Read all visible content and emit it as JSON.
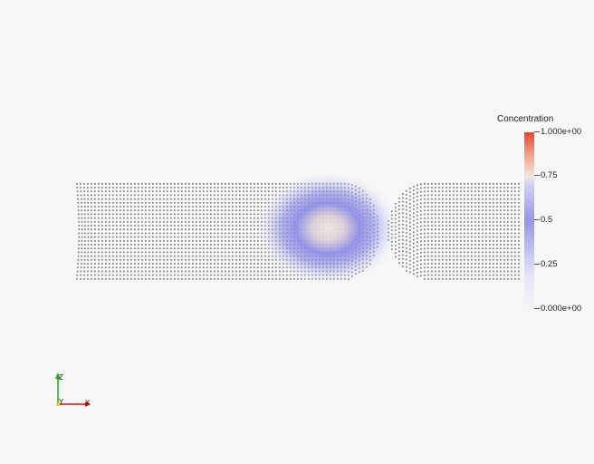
{
  "legend": {
    "title": "Concentration",
    "ticks": [
      "1.000e+00",
      "0.75",
      "0.5",
      "0.25",
      "0.000e+00"
    ],
    "range": [
      0,
      1
    ],
    "colors": [
      "#e8452c",
      "#f2cdb7",
      "#9696ea",
      "#f5f5fb"
    ]
  },
  "axes": {
    "labels": [
      "Z",
      "Y",
      "X"
    ],
    "colors": {
      "z": "#1fa81f",
      "y": "#e6d300",
      "x": "#cc1111"
    }
  },
  "scene": {
    "point_color": "#595959",
    "background": "#f7f7f7"
  }
}
